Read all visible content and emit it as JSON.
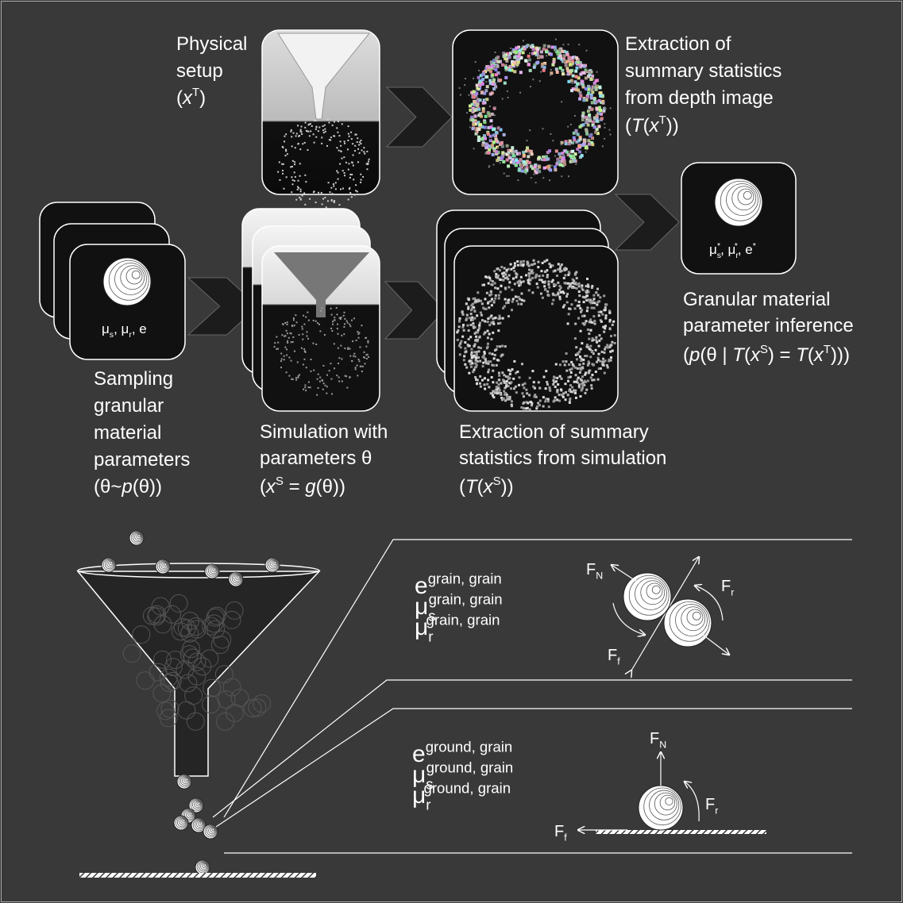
{
  "steps": [
    {
      "label": [
        "Physical",
        "setup"
      ],
      "notation": [
        {
          "t": "("
        },
        {
          "t": "x",
          "i": true
        },
        {
          "t": "T",
          "sup": true
        },
        {
          "t": ")"
        }
      ]
    },
    {
      "label": [
        "Extraction of",
        "summary statistics",
        "from depth image"
      ],
      "notation": [
        {
          "t": "("
        },
        {
          "t": "T",
          "i": true
        },
        {
          "t": "("
        },
        {
          "t": "x",
          "i": true
        },
        {
          "t": "T",
          "sup": true
        },
        {
          "t": "))"
        }
      ]
    },
    {
      "label": [
        "Granular material",
        "parameter inference"
      ],
      "notation": [
        {
          "t": "("
        },
        {
          "t": "p",
          "i": true
        },
        {
          "t": "(θ | "
        },
        {
          "t": "T",
          "i": true
        },
        {
          "t": "("
        },
        {
          "t": "x",
          "i": true
        },
        {
          "t": "S",
          "sup": true
        },
        {
          "t": ") = "
        },
        {
          "t": "T",
          "i": true
        },
        {
          "t": "("
        },
        {
          "t": "x",
          "i": true
        },
        {
          "t": "T",
          "sup": true
        },
        {
          "t": ")))"
        }
      ]
    },
    {
      "label": [
        "Sampling",
        "granular",
        "material",
        "parameters"
      ],
      "notation": [
        {
          "t": "(θ~"
        },
        {
          "t": "p",
          "i": true
        },
        {
          "t": "(θ))"
        }
      ]
    },
    {
      "label": [
        "Simulation with",
        "parameters θ"
      ],
      "notation": [
        {
          "t": "("
        },
        {
          "t": "x",
          "i": true
        },
        {
          "t": "S",
          "sup": true
        },
        {
          "t": " = "
        },
        {
          "t": "g",
          "i": true
        },
        {
          "t": "(θ))"
        }
      ]
    },
    {
      "label": [
        "Extraction of summary",
        "statistics from simulation"
      ],
      "notation": [
        {
          "t": "("
        },
        {
          "t": "T",
          "i": true
        },
        {
          "t": "("
        },
        {
          "t": "x",
          "i": true
        },
        {
          "t": "S",
          "sup": true
        },
        {
          "t": "))"
        }
      ]
    }
  ],
  "cards": {
    "prior": [
      {
        "t": "μ"
      },
      {
        "t": "s",
        "sub": true
      },
      {
        "t": ", μ"
      },
      {
        "t": "r",
        "sub": true
      },
      {
        "t": ", e"
      }
    ],
    "posterior": [
      {
        "t": "μ"
      },
      {
        "t": "s",
        "sub": true
      },
      {
        "t": "*",
        "sup": true
      },
      {
        "t": ", μ"
      },
      {
        "t": "r",
        "sub": true
      },
      {
        "t": "*",
        "sup": true
      },
      {
        "t": ", e"
      },
      {
        "t": "*",
        "sup": true
      }
    ]
  },
  "grain_grain": {
    "params": [
      [
        {
          "t": "e"
        },
        {
          "t": "grain, grain",
          "sup": true
        }
      ],
      [
        {
          "t": "μ"
        },
        {
          "t": "s",
          "sub": true
        },
        {
          "t": "grain, grain",
          "sup": true
        }
      ],
      [
        {
          "t": "μ"
        },
        {
          "t": "r",
          "sub": true
        },
        {
          "t": "grain, grain",
          "sup": true
        }
      ]
    ],
    "forces": {
      "normal": [
        {
          "t": "F"
        },
        {
          "t": "N",
          "sub": true
        }
      ],
      "rolling": [
        {
          "t": "F"
        },
        {
          "t": "r",
          "sub": true
        }
      ],
      "friction": [
        {
          "t": "F"
        },
        {
          "t": "f",
          "sub": true
        }
      ]
    }
  },
  "ground_grain": {
    "params": [
      [
        {
          "t": "e"
        },
        {
          "t": "ground, grain",
          "sup": true
        }
      ],
      [
        {
          "t": "μ"
        },
        {
          "t": "s",
          "sub": true
        },
        {
          "t": "ground, grain",
          "sup": true
        }
      ],
      [
        {
          "t": "μ"
        },
        {
          "t": "r",
          "sub": true
        },
        {
          "t": "ground, grain",
          "sup": true
        }
      ]
    ],
    "forces": {
      "normal": [
        {
          "t": "F"
        },
        {
          "t": "N",
          "sub": true
        }
      ],
      "rolling": [
        {
          "t": "F"
        },
        {
          "t": "r",
          "sub": true
        }
      ],
      "friction": [
        {
          "t": "F"
        },
        {
          "t": "f",
          "sub": true
        }
      ]
    }
  }
}
